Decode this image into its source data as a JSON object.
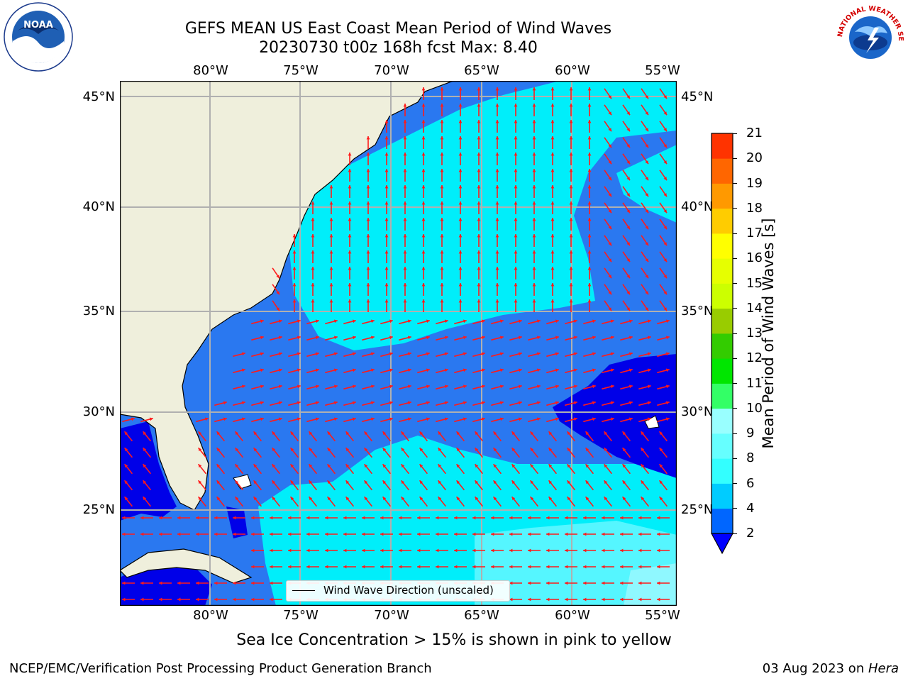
{
  "title": "GEFS MEAN US East Coast Mean Period of Wind Waves",
  "subtitle": "20230730 t00z 168h fcst   Max: 8.40",
  "logos": {
    "left": "NOAA",
    "right": "NATIONAL WEATHER SERVICE"
  },
  "axes": {
    "lon_labels": [
      "80°W",
      "75°W",
      "70°W",
      "65°W",
      "60°W",
      "55°W"
    ],
    "lat_labels": [
      "45°N",
      "40°N",
      "35°N",
      "30°N",
      "25°N"
    ],
    "lon_range": [
      -85,
      -54
    ],
    "lat_range": [
      20,
      46
    ]
  },
  "legend": {
    "label": "Wind Wave Direction (unscaled)"
  },
  "colorbar": {
    "label": "Mean Period of Wind Waves [s]",
    "ticks": [
      "2",
      "4",
      "6",
      "8",
      "9",
      "10",
      "11",
      "12",
      "13",
      "14",
      "15",
      "16",
      "17",
      "18",
      "19",
      "20",
      "21"
    ],
    "colors": [
      "#0066ff",
      "#00ccff",
      "#33ffff",
      "#66ffff",
      "#99ffff",
      "#33ff66",
      "#00e600",
      "#33cc00",
      "#99cc00",
      "#ccff00",
      "#e6ff00",
      "#ffff00",
      "#ffcc00",
      "#ff9900",
      "#ff6600",
      "#ff3300",
      "#ff0000"
    ],
    "extend_color": "#0000ff"
  },
  "caption": "Sea Ice Concentration > 15% is shown in pink to yellow",
  "footer": {
    "left": "NCEP/EMC/Verification Post Processing Product Generation Branch",
    "right_date": "03 Aug 2023 on ",
    "right_machine": "Hera"
  }
}
